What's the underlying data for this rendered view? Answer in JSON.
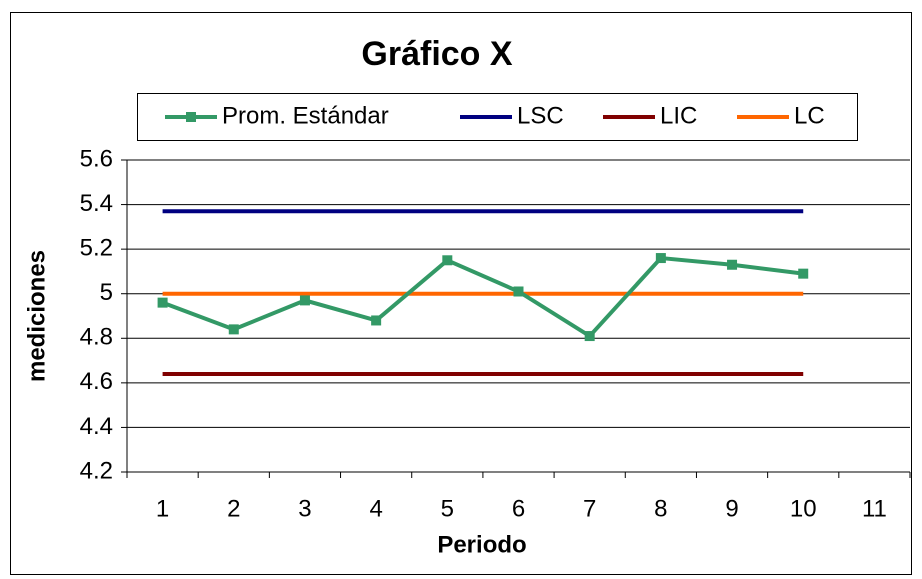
{
  "chart_data": {
    "type": "line",
    "title": "Gráfico X",
    "xlabel": "Periodo",
    "ylabel": "mediciones",
    "categories": [
      1,
      2,
      3,
      4,
      5,
      6,
      7,
      8,
      9,
      10,
      11
    ],
    "series": [
      {
        "name": "Prom. Estándar",
        "color": "#339966",
        "markers": true,
        "values": [
          4.96,
          4.84,
          4.97,
          4.88,
          5.15,
          5.01,
          4.81,
          5.16,
          5.13,
          5.09,
          null
        ]
      },
      {
        "name": "LSC",
        "color": "#000080",
        "markers": false,
        "values": [
          5.37,
          5.37,
          5.37,
          5.37,
          5.37,
          5.37,
          5.37,
          5.37,
          5.37,
          5.37,
          null
        ]
      },
      {
        "name": "LIC",
        "color": "#800000",
        "markers": false,
        "values": [
          4.64,
          4.64,
          4.64,
          4.64,
          4.64,
          4.64,
          4.64,
          4.64,
          4.64,
          4.64,
          null
        ]
      },
      {
        "name": "LC",
        "color": "#ff6600",
        "markers": false,
        "values": [
          5,
          5,
          5,
          5,
          5,
          5,
          5,
          5,
          5,
          5,
          null
        ]
      }
    ],
    "ylim": [
      4.2,
      5.6
    ],
    "yticks": [
      4.2,
      4.4,
      4.6,
      4.8,
      5,
      5.2,
      5.4,
      5.6
    ],
    "grid": true,
    "legend": "top"
  }
}
